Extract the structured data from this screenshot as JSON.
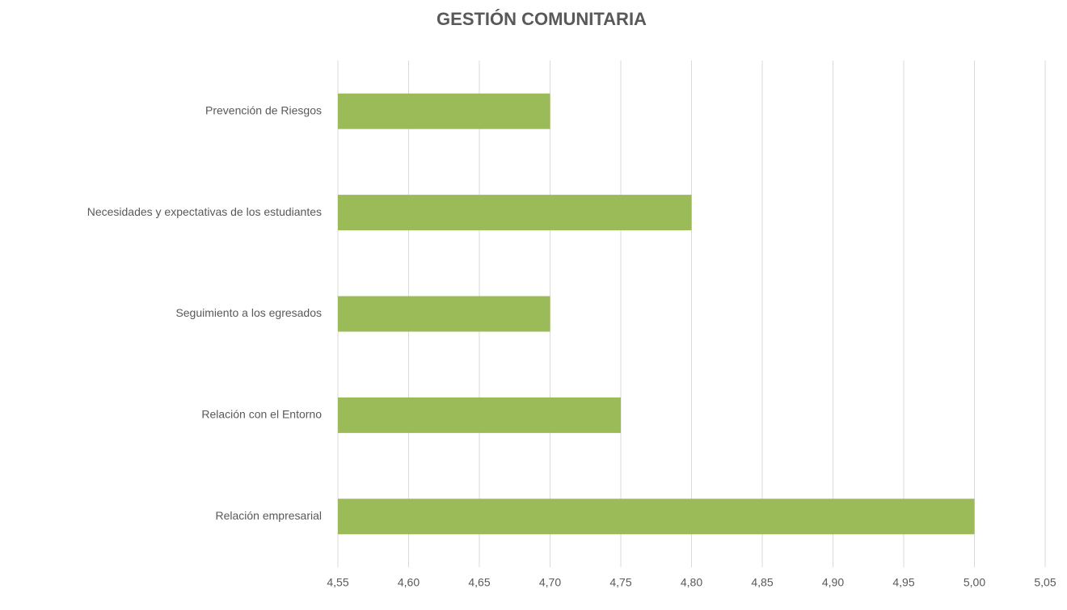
{
  "chart_data": {
    "type": "bar",
    "orientation": "horizontal",
    "title": "GESTIÓN COMUNITARIA",
    "categories": [
      "Prevención de Riesgos",
      "Necesidades y expectativas de los estudiantes",
      "Seguimiento a los egresados",
      "Relación con el Entorno",
      "Relación empresarial"
    ],
    "values": [
      4.7,
      4.8,
      4.7,
      4.75,
      5.0
    ],
    "color": "#9bbb59",
    "xlim": [
      4.55,
      5.05
    ],
    "xticks": [
      {
        "value": 4.55,
        "label": "4,55"
      },
      {
        "value": 4.6,
        "label": "4,60"
      },
      {
        "value": 4.65,
        "label": "4,65"
      },
      {
        "value": 4.7,
        "label": "4,70"
      },
      {
        "value": 4.75,
        "label": "4,75"
      },
      {
        "value": 4.8,
        "label": "4,80"
      },
      {
        "value": 4.85,
        "label": "4,85"
      },
      {
        "value": 4.9,
        "label": "4,90"
      },
      {
        "value": 4.95,
        "label": "4,95"
      },
      {
        "value": 5.0,
        "label": "5,00"
      },
      {
        "value": 5.05,
        "label": "5,05"
      }
    ],
    "grid": true
  }
}
